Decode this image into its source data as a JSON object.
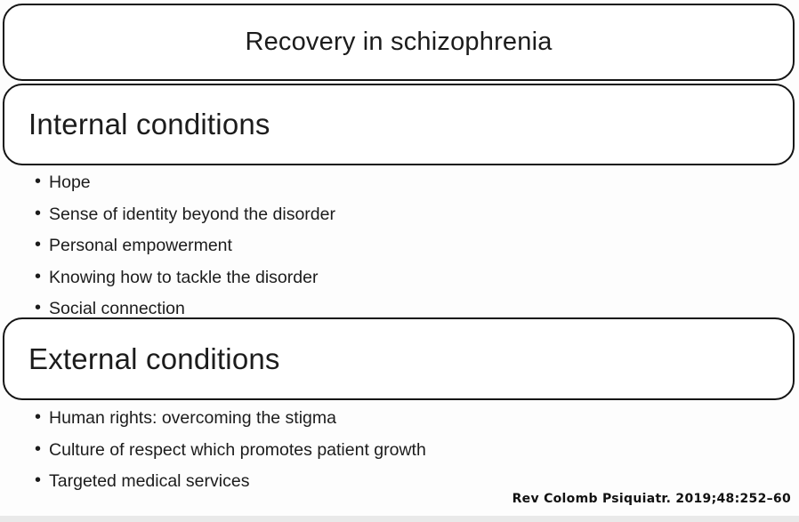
{
  "figure": {
    "title": "Recovery in schizophrenia",
    "sections": [
      {
        "heading": "Internal conditions",
        "items": [
          "Hope",
          "Sense of identity beyond the disorder",
          "Personal empowerment",
          "Knowing how to tackle the disorder",
          "Social connection"
        ]
      },
      {
        "heading": "External conditions",
        "items": [
          "Human rights: overcoming the stigma",
          "Culture of respect which promotes patient growth",
          "Targeted medical services"
        ]
      }
    ],
    "citation": "Rev Colomb Psiquiatr. 2019;48:252–60",
    "colors": {
      "border": "#141414",
      "text": "#1c1c1c",
      "background": "#fdfdfd"
    }
  }
}
